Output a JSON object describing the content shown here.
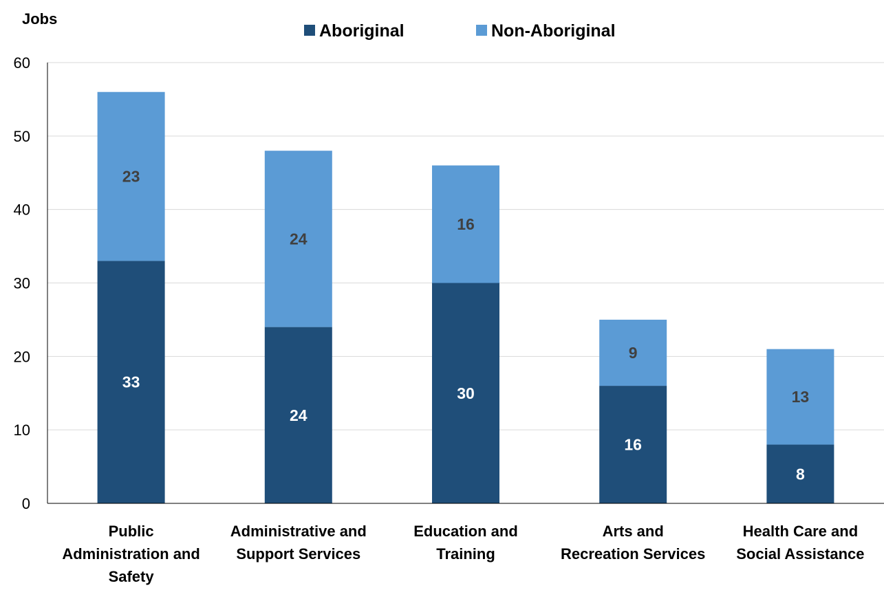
{
  "chart_data": {
    "type": "bar",
    "stacked": true,
    "ylabel": "Jobs",
    "ylim": [
      0,
      60
    ],
    "yticks": [
      0,
      10,
      20,
      30,
      40,
      50,
      60
    ],
    "grid": true,
    "legend_position": "top-center",
    "categories": [
      [
        "Public",
        "Administration and",
        "Safety"
      ],
      [
        "Administrative and",
        "Support Services"
      ],
      [
        "Education and",
        "Training"
      ],
      [
        "Arts and",
        "Recreation Services"
      ],
      [
        "Health Care and",
        "Social Assistance"
      ]
    ],
    "series": [
      {
        "name": "Aboriginal",
        "color": "#1f4e79",
        "label_color": "#ffffff",
        "values": [
          33,
          24,
          30,
          16,
          8
        ]
      },
      {
        "name": "Non-Aboriginal",
        "color": "#5b9bd5",
        "label_color": "#404040",
        "values": [
          23,
          24,
          16,
          9,
          13
        ]
      }
    ]
  }
}
